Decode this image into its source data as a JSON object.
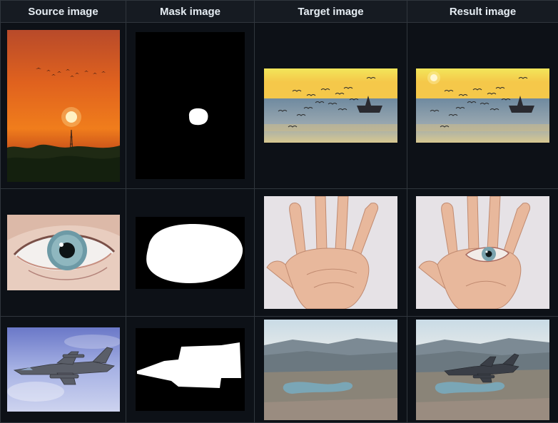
{
  "table": {
    "headers": [
      "Source image",
      "Mask image",
      "Target image",
      "Result image"
    ]
  },
  "rows": [
    {
      "source": "sunset with birds and tower",
      "mask": "small circle mask",
      "target": "seagulls over sea with boat",
      "result": "seagulls over sea with sun"
    },
    {
      "source": "close-up eye",
      "mask": "eye blob mask",
      "target": "open palm hand",
      "result": "hand with eye on palm"
    },
    {
      "source": "fighter jet in sky",
      "mask": "jet shaped mask",
      "target": "mountain valley with lake",
      "result": "valley with fighter jet"
    }
  ],
  "colors": {
    "background": "#0d1117",
    "header_background": "#161b22",
    "border": "#30363d",
    "text": "#e6edf3"
  }
}
